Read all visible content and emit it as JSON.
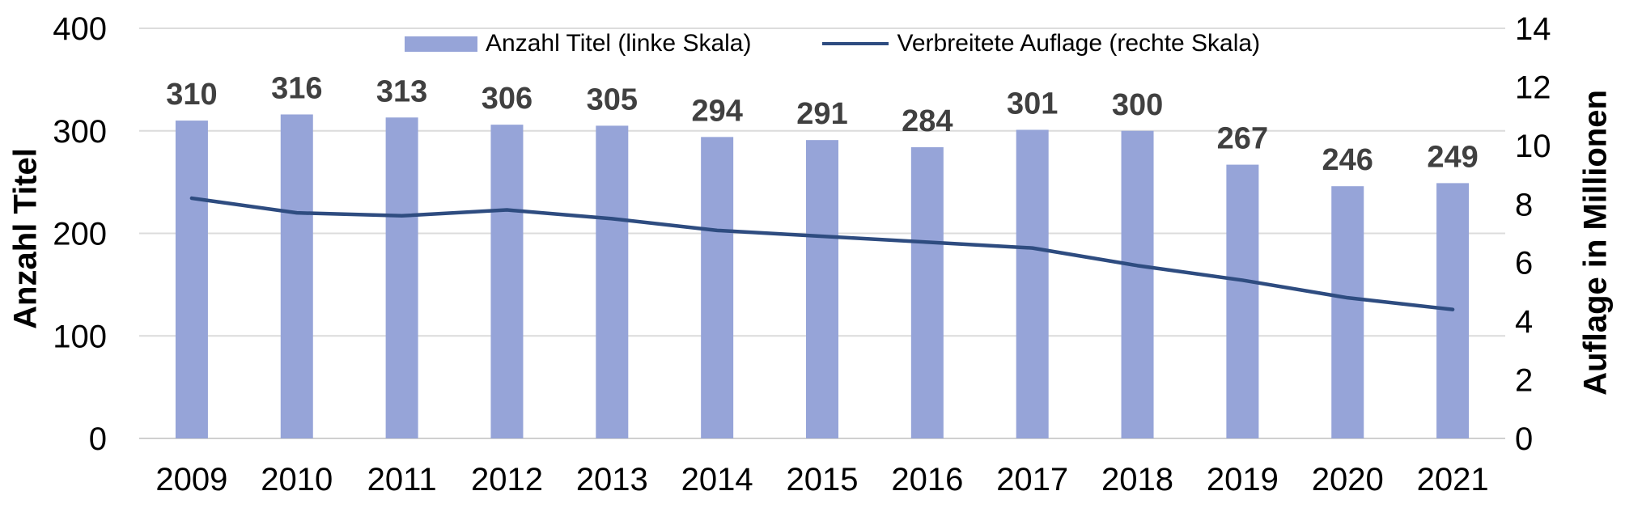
{
  "chart_data": {
    "type": "combo-bar-line",
    "title": "",
    "categories": [
      "2009",
      "2010",
      "2011",
      "2012",
      "2013",
      "2014",
      "2015",
      "2016",
      "2017",
      "2018",
      "2019",
      "2020",
      "2021"
    ],
    "series": [
      {
        "name": "Anzahl Titel (linke Skala)",
        "type": "bar",
        "axis": "left",
        "color": "#96A4D8",
        "values": [
          310,
          316,
          313,
          306,
          305,
          294,
          291,
          284,
          301,
          300,
          267,
          246,
          249
        ],
        "data_labels": true
      },
      {
        "name": "Verbreitete Auflage (rechte Skala)",
        "type": "line",
        "axis": "right",
        "color": "#2E4C80",
        "values": [
          8.2,
          7.7,
          7.6,
          7.8,
          7.5,
          7.1,
          6.9,
          6.7,
          6.5,
          5.9,
          5.4,
          4.8,
          4.4
        ],
        "data_labels": false
      }
    ],
    "axes": {
      "left": {
        "label": "Anzahl Titel",
        "min": 0,
        "max": 400,
        "step": 100,
        "ticks": [
          "0",
          "100",
          "200",
          "300",
          "400"
        ]
      },
      "right": {
        "label": "Auflage in Millionen",
        "min": 0,
        "max": 14,
        "step": 2,
        "ticks": [
          "0",
          "2",
          "4",
          "6",
          "8",
          "10",
          "12",
          "14"
        ]
      }
    },
    "grid": true,
    "legend_position": "top",
    "colors": {
      "gridline": "#DCDCDC",
      "baseline": "#D0D0D0",
      "data_label": "#404040",
      "axis_text": "#000000"
    }
  }
}
